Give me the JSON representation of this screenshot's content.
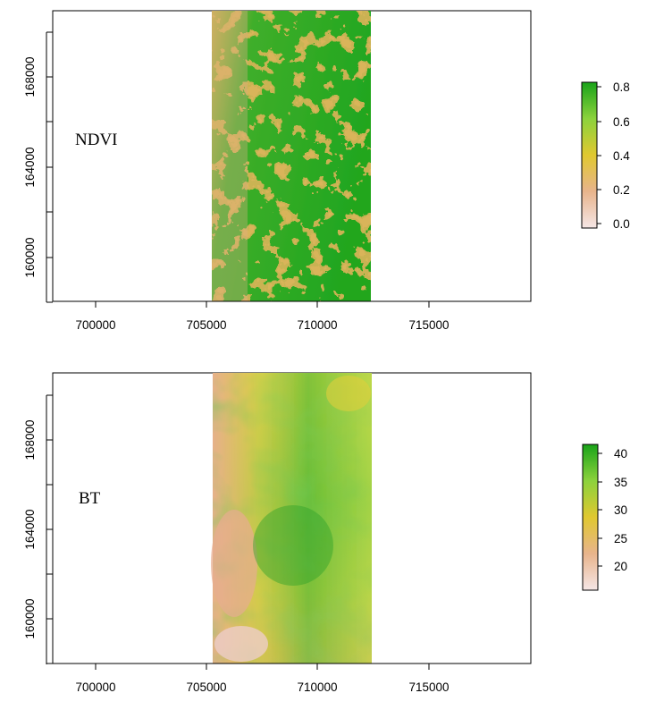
{
  "panels": [
    {
      "label": "NDVI",
      "x_ticks": [
        "700000",
        "705000",
        "710000",
        "715000"
      ],
      "y_ticks": [
        "160000",
        "164000",
        "168000"
      ],
      "legend_ticks": [
        "0.0",
        "0.2",
        "0.4",
        "0.6",
        "0.8"
      ],
      "colors": {
        "low": "#f5e6e6",
        "mid_low": "#e8b48c",
        "mid": "#e0c830",
        "mid_high": "#8cd23c",
        "high": "#19a319"
      }
    },
    {
      "label": "BT",
      "x_ticks": [
        "700000",
        "705000",
        "710000",
        "715000"
      ],
      "y_ticks": [
        "160000",
        "164000",
        "168000"
      ],
      "legend_ticks": [
        "20",
        "25",
        "30",
        "35",
        "40"
      ],
      "colors": {
        "low": "#f5e6e6",
        "mid_low": "#e8b48c",
        "mid": "#e0c830",
        "mid_high": "#8cd23c",
        "high": "#19a319"
      }
    }
  ]
}
